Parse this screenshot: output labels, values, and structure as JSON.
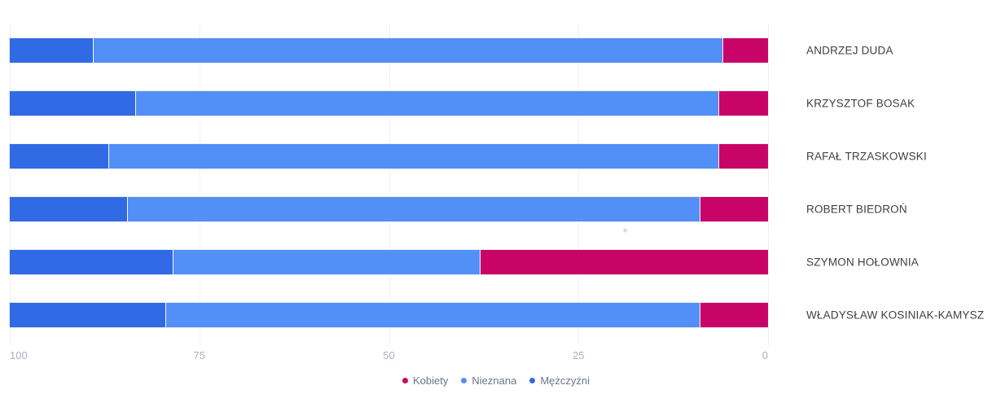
{
  "chart_data": {
    "type": "bar",
    "orientation": "horizontal",
    "stacked": true,
    "title": "",
    "xlabel": "",
    "ylabel": "",
    "grid": true,
    "categories": [
      "ANDRZEJ DUDA",
      "KRZYSZTOF BOSAK",
      "RAFAŁ TRZASKOWSKI",
      "ROBERT BIEDROŃ",
      "SZYMON HOŁOWNIA",
      "WŁADYSŁAW KOSINIAK-KAMYSZ"
    ],
    "series": [
      {
        "name": "Mężczyźni",
        "color": "#306ae4",
        "values": [
          11,
          16.5,
          13,
          15.5,
          21.5,
          20.5
        ]
      },
      {
        "name": "Nieznana",
        "color": "#528ff7",
        "values": [
          83,
          77,
          80.5,
          75.5,
          40.5,
          70.5
        ]
      },
      {
        "name": "Kobiety",
        "color": "#c90468",
        "values": [
          6,
          6.5,
          6.5,
          9,
          38,
          9
        ]
      }
    ],
    "x_axis": {
      "range": [
        0,
        100
      ],
      "reversed": true,
      "ticks": [
        100,
        75,
        50,
        25,
        0
      ],
      "tick_labels": [
        "100",
        "75",
        "50",
        "25",
        "0"
      ]
    },
    "legend": {
      "position": "bottom-center",
      "entries": [
        {
          "label": "Kobiety",
          "color": "#c90468"
        },
        {
          "label": "Nieznana",
          "color": "#528ff7"
        },
        {
          "label": "Mężczyźni",
          "color": "#306ae4"
        }
      ]
    },
    "colors": {
      "grid": "#e2e3e9",
      "tick_text": "#a9b0c3",
      "category_text": "#3d3f45",
      "legend_text": "#6d7587",
      "background": "#ffffff"
    }
  }
}
